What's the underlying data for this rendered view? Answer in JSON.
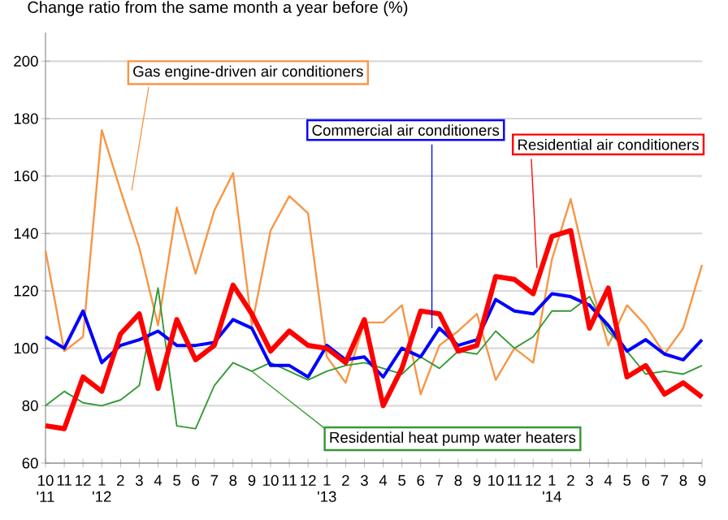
{
  "chart_data": {
    "type": "line",
    "ylabel": "Change ratio from the same month a year before (%)",
    "categories": [
      "10 '11",
      "11",
      "12",
      "1 '12",
      "2",
      "3",
      "4",
      "5",
      "6",
      "7",
      "8",
      "9",
      "10",
      "11",
      "12",
      "1 '13",
      "2",
      "3",
      "4",
      "5",
      "6",
      "7",
      "8",
      "9",
      "10",
      "11",
      "12",
      "1 '14",
      "2",
      "3",
      "4",
      "5",
      "6",
      "7",
      "8",
      "9"
    ],
    "series": [
      {
        "name": "Gas engine-driven air conditioners",
        "color": "#f79646",
        "values": [
          134,
          99,
          104,
          176,
          155,
          135,
          108,
          149,
          126,
          148,
          161,
          108,
          141,
          153,
          147,
          97,
          88,
          109,
          109,
          115,
          84,
          101,
          106,
          112,
          89,
          100,
          95,
          131,
          152,
          124,
          101,
          115,
          108,
          98,
          107,
          129
        ]
      },
      {
        "name": "Residential heat pump water heaters",
        "color": "#339933",
        "values": [
          80,
          85,
          81,
          80,
          82,
          87,
          121,
          73,
          72,
          87,
          95,
          92,
          95,
          92,
          89,
          92,
          94,
          95,
          93,
          91,
          97,
          93,
          99,
          98,
          106,
          100,
          104,
          113,
          113,
          118,
          106,
          99,
          91,
          92,
          91,
          94
        ]
      },
      {
        "name": "Commercial air conditioners",
        "color": "#0000ff",
        "values": [
          104,
          100,
          113,
          95,
          101,
          103,
          106,
          101,
          101,
          102,
          110,
          107,
          94,
          94,
          90,
          101,
          96,
          97,
          90,
          100,
          97,
          107,
          101,
          103,
          117,
          113,
          112,
          119,
          118,
          115,
          108,
          99,
          103,
          98,
          96,
          103
        ]
      },
      {
        "name": "Residential air conditioners",
        "color": "#ff0000",
        "values": [
          73,
          72,
          90,
          85,
          105,
          112,
          86,
          110,
          96,
          101,
          122,
          112,
          99,
          106,
          101,
          100,
          95,
          110,
          80,
          93,
          113,
          112,
          99,
          101,
          125,
          124,
          119,
          139,
          141,
          107,
          121,
          90,
          94,
          84,
          88,
          83
        ]
      }
    ],
    "ylim": [
      60,
      210
    ],
    "yticks": [
      60,
      80,
      100,
      120,
      140,
      160,
      180,
      200
    ],
    "grid": "y",
    "legend": false
  }
}
